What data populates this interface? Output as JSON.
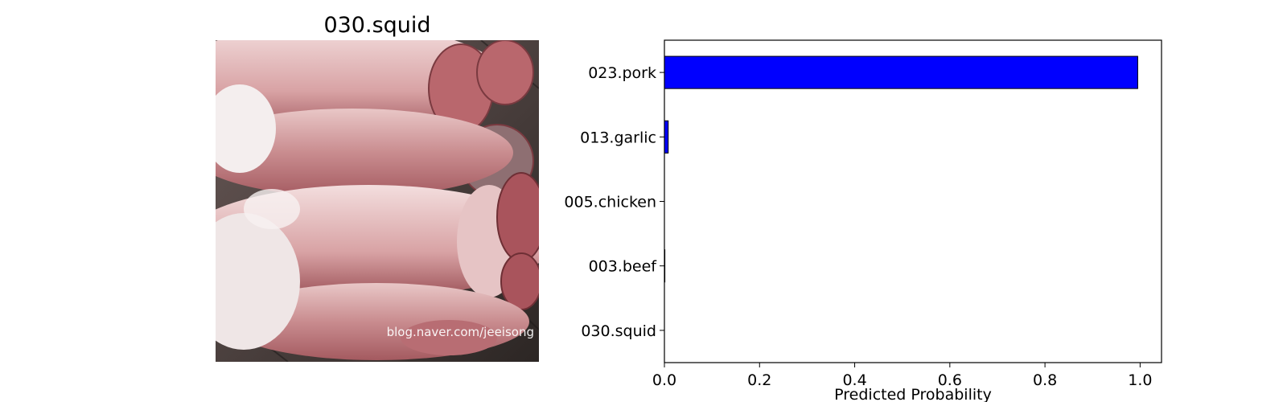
{
  "image_panel": {
    "title": "030.squid",
    "watermark": "blog.naver.com/jeeisong"
  },
  "colors": {
    "bar_fill": "#0000ff",
    "bar_edge": "#000000"
  },
  "chart_data": {
    "type": "bar",
    "orientation": "horizontal",
    "title": "",
    "xlabel": "Predicted Probability",
    "ylabel": "",
    "categories": [
      "023.pork",
      "013.garlic",
      "005.chicken",
      "003.beef",
      "030.squid"
    ],
    "values": [
      0.995,
      0.008,
      0.0,
      0.001,
      0.0
    ],
    "xlim": [
      0.0,
      1.045
    ],
    "xticks": [
      0.0,
      0.2,
      0.4,
      0.6,
      0.8,
      1.0
    ],
    "xtick_labels": [
      "0.0",
      "0.2",
      "0.4",
      "0.6",
      "0.8",
      "1.0"
    ],
    "grid": false,
    "legend": "none"
  }
}
